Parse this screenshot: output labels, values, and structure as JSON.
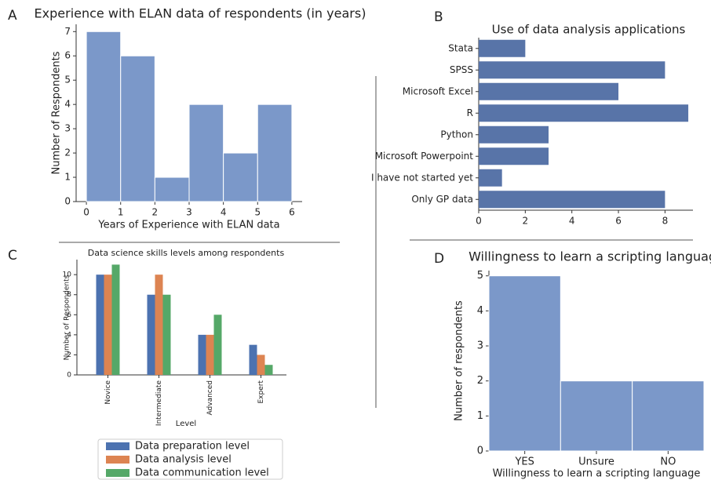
{
  "chart_data": [
    {
      "type": "histogram",
      "label": "A",
      "title": "Experience with ELAN data of respondents (in years)",
      "x_label": "Years of Experience with ELAN data",
      "y_label": "Number of Respondents",
      "bins": [
        0,
        1,
        2,
        3,
        4,
        5,
        6
      ],
      "values": [
        7,
        6,
        1,
        4,
        2,
        4
      ],
      "color": "#7b98c9",
      "xlim": [
        -0.3,
        6.3
      ],
      "xticks": [
        0,
        1,
        2,
        3,
        4,
        5,
        6
      ],
      "ylim": [
        0,
        7.3
      ],
      "yticks": [
        0,
        1,
        2,
        3,
        4,
        5,
        6,
        7
      ]
    },
    {
      "type": "barh",
      "label": "B",
      "title": "Use of data analysis applications",
      "categories": [
        "Stata",
        "SPSS",
        "Microsoft Excel",
        "R",
        "Python",
        "Microsoft Powerpoint",
        "I have not started yet",
        "Only GP data"
      ],
      "values": [
        2,
        8,
        6,
        9,
        3,
        3,
        1,
        8
      ],
      "color": "#5874a8",
      "xlim": [
        0,
        9.2
      ],
      "xticks": [
        0,
        2,
        4,
        6,
        8
      ]
    },
    {
      "type": "grouped_bar",
      "label": "C",
      "title": "Data science skills levels among respondents",
      "x_label": "Level",
      "y_label": "Number of Respondents",
      "categories": [
        "Novice",
        "Intermediate",
        "Advanced",
        "Expert"
      ],
      "series": [
        {
          "name": "Data preparation level",
          "color": "#4c72b0",
          "values": [
            10,
            8,
            4,
            3
          ]
        },
        {
          "name": "Data analysis level",
          "color": "#dd8452",
          "values": [
            10,
            10,
            4,
            2
          ]
        },
        {
          "name": "Data communication level",
          "color": "#55a868",
          "values": [
            11,
            8,
            6,
            1
          ]
        }
      ],
      "ylim": [
        0,
        11.5
      ],
      "yticks": [
        0,
        2,
        4,
        6,
        8,
        10
      ]
    },
    {
      "type": "bar",
      "label": "D",
      "title": "Willingness to learn a scripting language",
      "x_label": "Willingness to learn a scripting language",
      "y_label": "Number of respondents",
      "categories": [
        "YES",
        "Unsure",
        "NO"
      ],
      "values": [
        5,
        2,
        2
      ],
      "color": "#7b98c9",
      "ylim": [
        0,
        5.15
      ],
      "yticks": [
        0,
        1,
        2,
        3,
        4,
        5
      ]
    }
  ]
}
